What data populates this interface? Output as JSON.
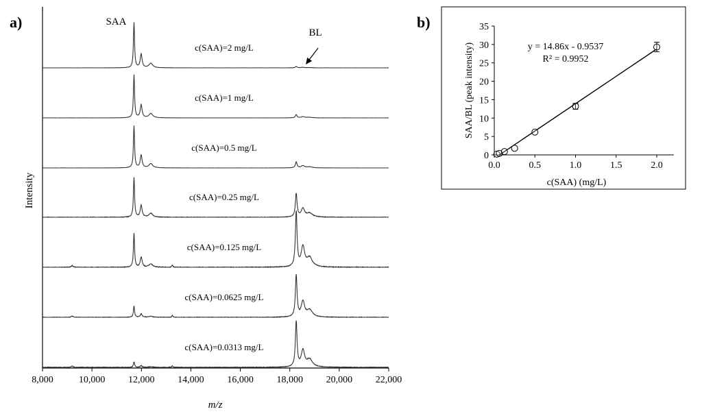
{
  "chart_data": [
    {
      "type": "line",
      "panel_label": "a)",
      "xlabel": "m/z",
      "ylabel": "Intensity",
      "xlim": [
        8000,
        22000
      ],
      "x_ticks": [
        "8,000",
        "10,000",
        "12,000",
        "14,000",
        "16,000",
        "18,000",
        "20,000",
        "22,000"
      ],
      "stacked": true,
      "peak_labels": [
        {
          "text": "SAA",
          "x": 11700
        },
        {
          "text": "BL",
          "x": 18260
        }
      ],
      "series": [
        {
          "name": "c(SAA)=2 mg/L",
          "saa_peak": 1.0,
          "bl_peak": 0.03
        },
        {
          "name": "c(SAA)=1 mg/L",
          "saa_peak": 0.95,
          "bl_peak": 0.07
        },
        {
          "name": "c(SAA)=0.5 mg/L",
          "saa_peak": 0.93,
          "bl_peak": 0.13
        },
        {
          "name": "c(SAA)=0.25 mg/L",
          "saa_peak": 0.88,
          "bl_peak": 0.52
        },
        {
          "name": "c(SAA)=0.125 mg/L",
          "saa_peak": 0.62,
          "bl_peak": 1.0
        },
        {
          "name": "c(SAA)=0.0625 mg/L",
          "saa_peak": 0.25,
          "bl_peak": 0.92
        },
        {
          "name": "c(SAA)=0.0313 mg/L",
          "saa_peak": 0.12,
          "bl_peak": 1.0
        }
      ]
    },
    {
      "type": "scatter",
      "panel_label": "b)",
      "xlabel": "c(SAA) (mg/L)",
      "ylabel": "SAA/BL (peak intensity)",
      "xlim": [
        0.0,
        2.0
      ],
      "ylim": [
        0,
        35
      ],
      "x_ticks": [
        "0.0",
        "0.5",
        "1.0",
        "1.5",
        "2.0"
      ],
      "y_ticks": [
        "0",
        "5",
        "10",
        "15",
        "20",
        "25",
        "30",
        "35"
      ],
      "points": [
        {
          "x": 0.0313,
          "y": 0.2
        },
        {
          "x": 0.0625,
          "y": 0.4
        },
        {
          "x": 0.125,
          "y": 0.9
        },
        {
          "x": 0.25,
          "y": 1.8
        },
        {
          "x": 0.5,
          "y": 6.2
        },
        {
          "x": 1.0,
          "y": 13.2,
          "err": 0.8
        },
        {
          "x": 2.0,
          "y": 29.3,
          "err": 1.3
        }
      ],
      "fit": {
        "slope": 14.86,
        "intercept": -0.9537
      },
      "equation": "y = 14.86x - 0.9537",
      "r2": "R² = 0.9952"
    }
  ]
}
